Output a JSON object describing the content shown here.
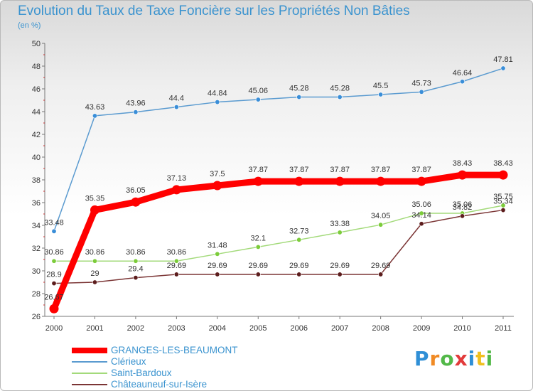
{
  "chart_data": {
    "type": "line",
    "title": "Evolution du Taux de Taxe Foncière sur les Propriétés Non Bâties",
    "ylabel": "(en %)",
    "xlabel": "",
    "ylim": [
      26,
      50
    ],
    "yticks": [
      26,
      28,
      30,
      32,
      34,
      36,
      38,
      40,
      42,
      44,
      46,
      48,
      50
    ],
    "grid": false,
    "legend_position": "bottom-left",
    "x": [
      2000,
      2001,
      2002,
      2003,
      2004,
      2005,
      2006,
      2007,
      2008,
      2009,
      2010,
      2011
    ],
    "series": [
      {
        "name": "Clérieux",
        "color": "#5b9bd0",
        "marker_color": "#3a8ed8",
        "emphasis": false,
        "values": [
          33.48,
          43.63,
          43.96,
          44.4,
          44.84,
          45.06,
          45.28,
          45.28,
          45.5,
          45.73,
          46.64,
          47.81
        ],
        "labels": [
          "33.48",
          "43.63",
          "43.96",
          "44.4",
          "44.84",
          "45.06",
          "45.28",
          "45.28",
          "45.5",
          "45.73",
          "46.64",
          "47.81"
        ]
      },
      {
        "name": "Saint-Bardoux",
        "color": "#a3da7a",
        "marker_color": "#7ccc3a",
        "emphasis": false,
        "values": [
          30.86,
          30.86,
          30.86,
          30.86,
          31.48,
          32.1,
          32.73,
          33.38,
          34.05,
          35.06,
          35.06,
          35.75
        ],
        "labels": [
          "30.86",
          "30.86",
          "30.86",
          "30.86",
          "31.48",
          "32.1",
          "32.73",
          "33.38",
          "34.05",
          "35.06",
          "35.06",
          "35.75"
        ]
      },
      {
        "name": "Châteauneuf-sur-Isère",
        "color": "#7b3535",
        "marker_color": "#5c1d1d",
        "emphasis": false,
        "values": [
          28.9,
          29,
          29.4,
          29.69,
          29.69,
          29.69,
          29.69,
          29.69,
          29.69,
          34.14,
          34.82,
          35.34
        ],
        "labels": [
          "28.9",
          "29",
          "29.4",
          "29.69",
          "29.69",
          "29.69",
          "29.69",
          "29.69",
          "29.69",
          "34.14",
          "34.82",
          "35.34"
        ]
      },
      {
        "name": "GRANGES-LES-BEAUMONT",
        "color": "#ff0000",
        "marker_color": "#ff0000",
        "emphasis": true,
        "values": [
          26.67,
          35.35,
          36.05,
          37.13,
          37.5,
          37.87,
          37.87,
          37.87,
          37.87,
          37.87,
          38.43,
          38.43
        ],
        "labels": [
          "26.67",
          "35.35",
          "36.05",
          "37.13",
          "37.5",
          "37.87",
          "37.87",
          "37.87",
          "37.87",
          "37.87",
          "38.43",
          "38.43"
        ]
      }
    ],
    "legend_order": [
      "GRANGES-LES-BEAUMONT",
      "Clérieux",
      "Saint-Bardoux",
      "Châteauneuf-sur-Isère"
    ]
  },
  "brand": {
    "letters": [
      "P",
      "r",
      "o",
      "x",
      "i",
      "t",
      "i"
    ],
    "colors": [
      "#2f8fd6",
      "#f08a24",
      "#52b848",
      "#e23b3b",
      "#2f8fd6",
      "#f0c020",
      "#52b848"
    ]
  }
}
